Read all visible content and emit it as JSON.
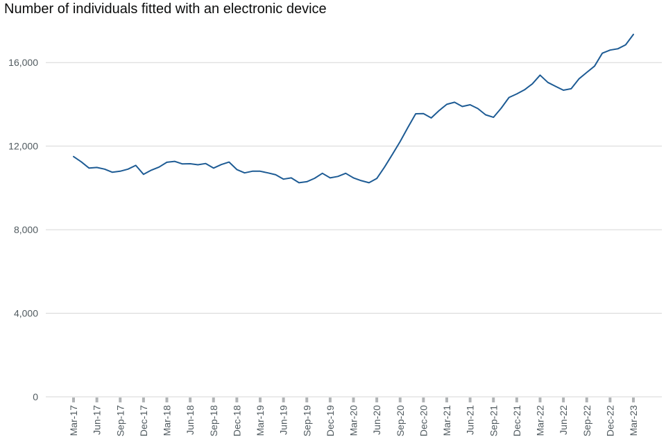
{
  "chart_data": {
    "type": "line",
    "title": "Number of individuals fitted with an electronic device",
    "xlabel": "",
    "ylabel": "",
    "ylim": [
      0,
      18000
    ],
    "yticks": [
      0,
      4000,
      8000,
      12000,
      16000
    ],
    "ytick_labels": [
      "0",
      "4,000",
      "8,000",
      "12,000",
      "16,000"
    ],
    "grid": true,
    "x_tick_labels": [
      "Mar-17",
      "Jun-17",
      "Sep-17",
      "Dec-17",
      "Mar-18",
      "Jun-18",
      "Sep-18",
      "Dec-18",
      "Mar-19",
      "Jun-19",
      "Sep-19",
      "Dec-19",
      "Mar-20",
      "Jun-20",
      "Sep-20",
      "Dec-20",
      "Mar-21",
      "Jun-21",
      "Sep-21",
      "Dec-21",
      "Mar-22",
      "Jun-22",
      "Sep-22",
      "Dec-22",
      "Mar-23"
    ],
    "x": [
      "Mar-17",
      "Apr-17",
      "May-17",
      "Jun-17",
      "Jul-17",
      "Aug-17",
      "Sep-17",
      "Oct-17",
      "Nov-17",
      "Dec-17",
      "Jan-18",
      "Feb-18",
      "Mar-18",
      "Apr-18",
      "May-18",
      "Jun-18",
      "Jul-18",
      "Aug-18",
      "Sep-18",
      "Oct-18",
      "Nov-18",
      "Dec-18",
      "Jan-19",
      "Feb-19",
      "Mar-19",
      "Apr-19",
      "May-19",
      "Jun-19",
      "Jul-19",
      "Aug-19",
      "Sep-19",
      "Oct-19",
      "Nov-19",
      "Dec-19",
      "Jan-20",
      "Feb-20",
      "Mar-20",
      "Apr-20",
      "May-20",
      "Jun-20",
      "Jul-20",
      "Aug-20",
      "Sep-20",
      "Oct-20",
      "Nov-20",
      "Dec-20",
      "Jan-21",
      "Feb-21",
      "Mar-21",
      "Apr-21",
      "May-21",
      "Jun-21",
      "Jul-21",
      "Aug-21",
      "Sep-21",
      "Oct-21",
      "Nov-21",
      "Dec-21",
      "Jan-22",
      "Feb-22",
      "Mar-22",
      "Apr-22",
      "May-22",
      "Jun-22",
      "Jul-22",
      "Aug-22",
      "Sep-22",
      "Oct-22",
      "Nov-22",
      "Dec-22",
      "Jan-23",
      "Feb-23",
      "Mar-23"
    ],
    "series": [
      {
        "color": "#1d5b94",
        "values": [
          11500,
          11250,
          10950,
          10980,
          10900,
          10750,
          10800,
          10900,
          11080,
          10650,
          10850,
          11000,
          11230,
          11270,
          11150,
          11160,
          11110,
          11170,
          10950,
          11120,
          11240,
          10880,
          10720,
          10800,
          10800,
          10720,
          10630,
          10420,
          10480,
          10250,
          10300,
          10460,
          10700,
          10480,
          10550,
          10700,
          10480,
          10350,
          10250,
          10450,
          11000,
          11600,
          12220,
          12900,
          13550,
          13560,
          13350,
          13700,
          14000,
          14100,
          13900,
          13980,
          13800,
          13500,
          13380,
          13820,
          14330,
          14500,
          14700,
          14980,
          15400,
          15050,
          14860,
          14680,
          14750,
          15220,
          15530,
          15830,
          16450,
          16600,
          16660,
          16850,
          17350
        ]
      }
    ]
  }
}
